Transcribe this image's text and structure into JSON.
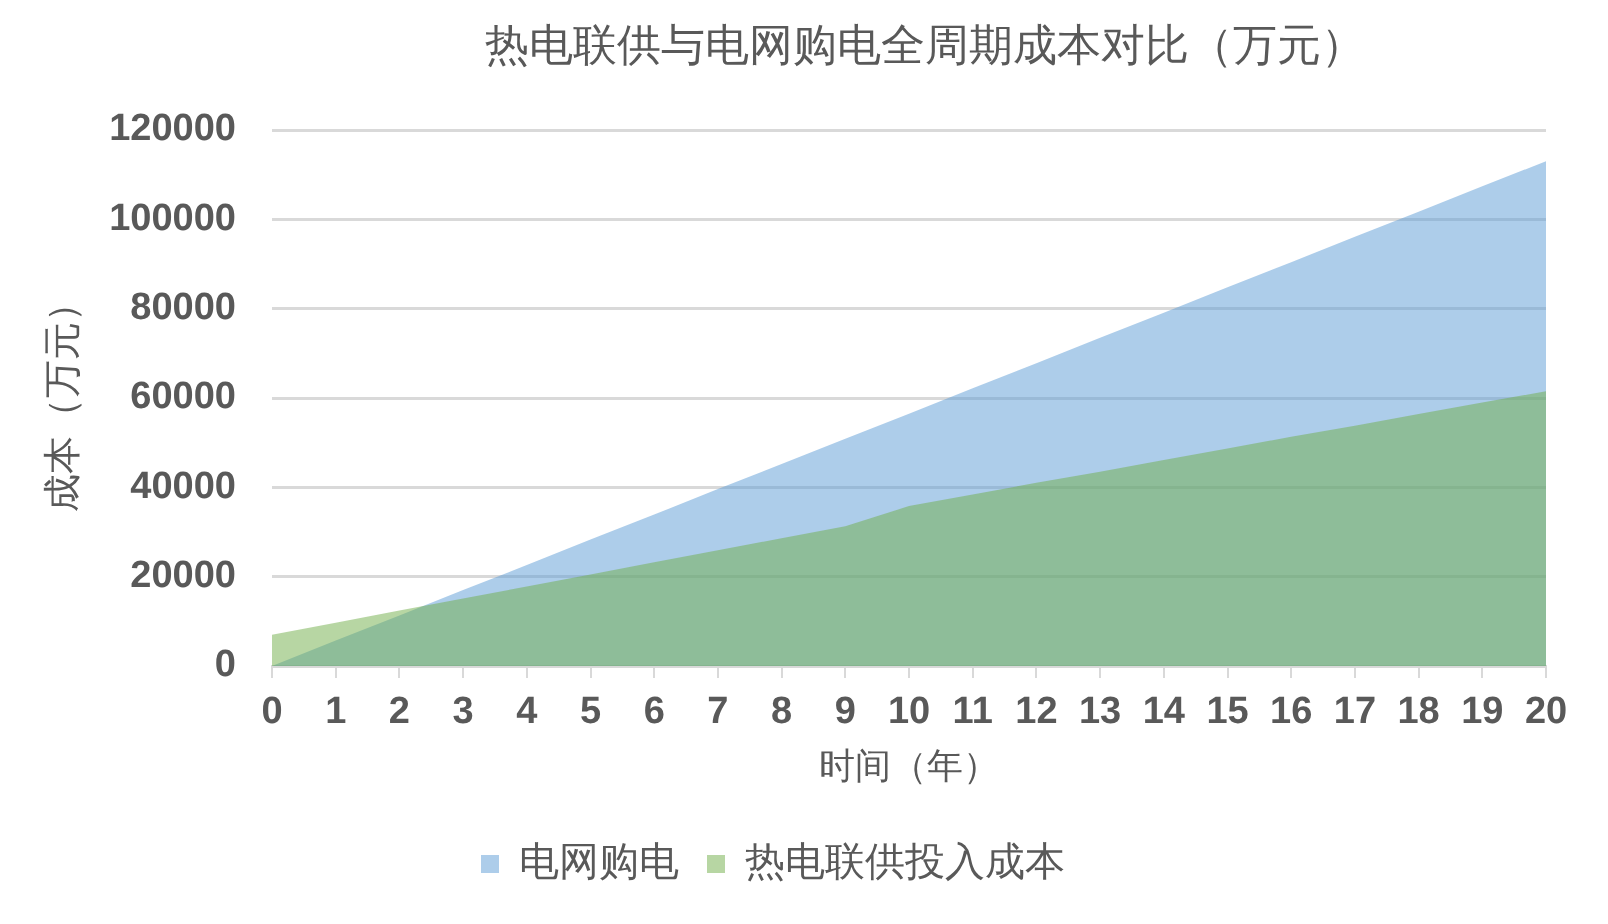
{
  "chart_data": {
    "type": "area",
    "title": "热电联供与电网购电全周期成本对比（万元）",
    "xlabel": "时间（年）",
    "ylabel": "成本（万元）",
    "x": [
      0,
      1,
      2,
      3,
      4,
      5,
      6,
      7,
      8,
      9,
      10,
      11,
      12,
      13,
      14,
      15,
      16,
      17,
      18,
      19,
      20
    ],
    "xlim": [
      0,
      20
    ],
    "xticks": [
      0,
      1,
      2,
      3,
      4,
      5,
      6,
      7,
      8,
      9,
      10,
      11,
      12,
      13,
      14,
      15,
      16,
      17,
      18,
      19,
      20
    ],
    "ylim": [
      0,
      120000
    ],
    "yticks": [
      0,
      20000,
      40000,
      60000,
      80000,
      100000,
      120000
    ],
    "series": [
      {
        "name": "电网购电",
        "color": "#5b9bd5",
        "values": [
          0,
          5700,
          11300,
          17000,
          22600,
          28300,
          33900,
          39600,
          45200,
          50900,
          56500,
          62200,
          67800,
          73500,
          79100,
          84800,
          90400,
          96100,
          101700,
          107400,
          113000
        ]
      },
      {
        "name": "热电联供投入成本",
        "color": "#70ad47",
        "values": [
          7000,
          9700,
          12400,
          15100,
          17800,
          20500,
          23200,
          25900,
          28600,
          31300,
          35800,
          38400,
          41000,
          43500,
          46100,
          48700,
          51300,
          53800,
          56400,
          59000,
          61500
        ]
      }
    ],
    "grid": "y",
    "legend": "bottom"
  }
}
